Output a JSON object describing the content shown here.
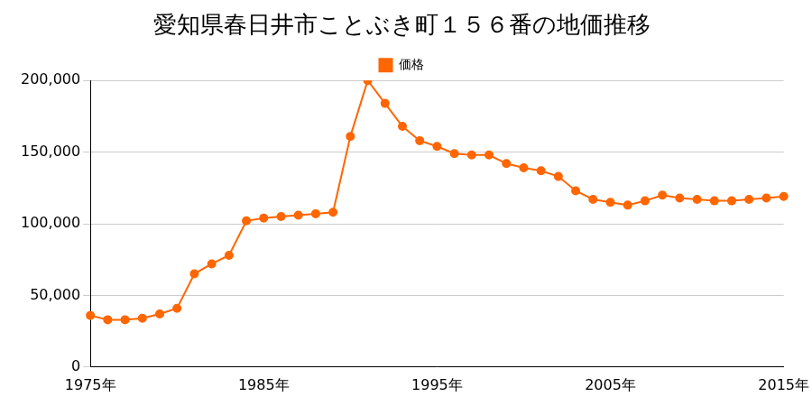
{
  "chart_data": {
    "type": "line",
    "title": "愛知県春日井市ことぶき町１５６番の地価推移",
    "categories": [
      "1975年",
      null,
      null,
      null,
      null,
      null,
      null,
      null,
      null,
      null,
      "1985年",
      null,
      null,
      null,
      null,
      null,
      null,
      null,
      null,
      null,
      "1995年",
      null,
      null,
      null,
      null,
      null,
      null,
      null,
      null,
      null,
      "2005年",
      null,
      null,
      null,
      null,
      null,
      null,
      null,
      null,
      null,
      "2015年"
    ],
    "series": [
      {
        "name": "価格",
        "color": "#ff6600",
        "marker": "circle",
        "values": [
          36000,
          33000,
          33000,
          34000,
          37000,
          41000,
          65000,
          72000,
          78000,
          102000,
          104000,
          105000,
          106000,
          107000,
          108000,
          161000,
          200000,
          184000,
          168000,
          158000,
          154000,
          149000,
          148000,
          148000,
          142000,
          139000,
          137000,
          133000,
          123000,
          117000,
          115000,
          113000,
          116000,
          120000,
          118000,
          117000,
          116000,
          116000,
          117000,
          118000,
          119000
        ]
      }
    ],
    "ylim": [
      0,
      200000
    ],
    "yticks": [
      0,
      {
        "value": 50000,
        "label": "50,000"
      },
      {
        "value": 100000,
        "label": "100,000"
      },
      {
        "value": 150000,
        "label": "150,000"
      },
      {
        "value": 200000,
        "label": "200,000"
      }
    ],
    "grid": true,
    "legend": "top"
  }
}
